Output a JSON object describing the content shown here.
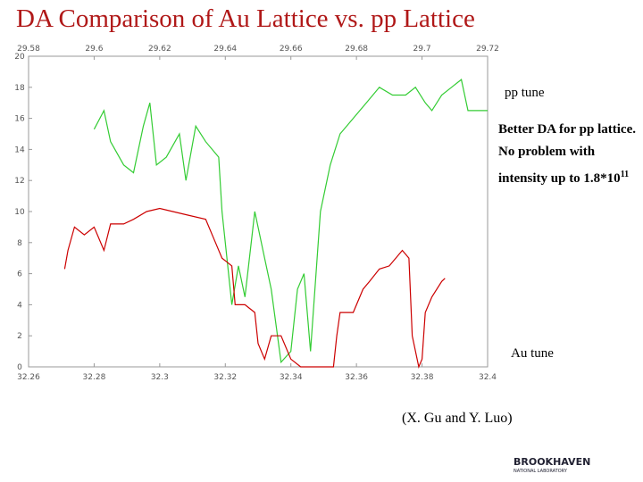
{
  "chart_data": {
    "type": "line",
    "title": "DA Comparison of Au Lattice vs. pp Lattice",
    "xlim": [
      32.26,
      32.4
    ],
    "xticks": [
      32.26,
      32.28,
      32.3,
      32.32,
      32.34,
      32.36,
      32.38,
      32.4
    ],
    "x2lim": [
      29.58,
      29.72
    ],
    "x2ticks": [
      29.58,
      29.6,
      29.62,
      29.64,
      29.66,
      29.68,
      29.7,
      29.72
    ],
    "ylim": [
      0,
      20
    ],
    "yticks": [
      0,
      2,
      4,
      6,
      8,
      10,
      12,
      14,
      16,
      18,
      20
    ],
    "series": [
      {
        "name": "pp tune",
        "color": "#33cc33",
        "x": [
          32.28,
          32.283,
          32.285,
          32.289,
          32.292,
          32.295,
          32.297,
          32.299,
          32.302,
          32.306,
          32.308,
          32.311,
          32.314,
          32.318,
          32.319,
          32.322,
          32.324,
          32.326,
          32.329,
          32.332,
          32.334,
          32.337,
          32.34,
          32.342,
          32.344,
          32.346,
          32.349,
          32.352,
          32.355,
          32.359,
          32.363,
          32.367,
          32.371,
          32.375,
          32.378,
          32.381,
          32.383,
          32.386,
          32.389,
          32.392,
          32.394,
          32.397,
          32.4
        ],
        "values": [
          15.3,
          16.5,
          14.5,
          13,
          12.5,
          15.5,
          17,
          13,
          13.5,
          15,
          12,
          15.5,
          14.5,
          13.5,
          10,
          4,
          6.5,
          4.5,
          10,
          7,
          5,
          0.3,
          1,
          5,
          6,
          1,
          10,
          13,
          15,
          16,
          17,
          18,
          17.5,
          17.5,
          18,
          17,
          16.5,
          17.5,
          18,
          18.5,
          16.5,
          16.5,
          16.5
        ]
      },
      {
        "name": "Au tune",
        "color": "#cc0000",
        "x": [
          32.271,
          32.272,
          32.274,
          32.277,
          32.28,
          32.283,
          32.285,
          32.289,
          32.292,
          32.296,
          32.3,
          32.304,
          32.308,
          32.314,
          32.317,
          32.319,
          32.322,
          32.323,
          32.326,
          32.329,
          32.33,
          32.332,
          32.334,
          32.337,
          32.34,
          32.343,
          32.347,
          32.353,
          32.354,
          32.355,
          32.359,
          32.362,
          32.364,
          32.367,
          32.37,
          32.374,
          32.376,
          32.377,
          32.379,
          32.38,
          32.381,
          32.383,
          32.386,
          32.387
        ],
        "values": [
          6.3,
          7.5,
          9,
          8.5,
          9,
          7.5,
          9.2,
          9.2,
          9.5,
          10,
          10.2,
          10,
          9.8,
          9.5,
          8,
          7,
          6.5,
          4,
          4,
          3.5,
          1.5,
          0.5,
          2,
          2,
          0.5,
          0,
          0,
          0,
          2,
          3.5,
          3.5,
          5,
          5.5,
          6.3,
          6.5,
          7.5,
          7,
          2,
          0,
          0.5,
          3.5,
          4.5,
          5.5,
          5.7
        ]
      }
    ],
    "note": "Better DA for pp lattice.  No problem with intensity up to 1.8*10",
    "note_exponent": "11"
  },
  "slide": {
    "credit": "(X. Gu and Y. Luo)",
    "logo": "BROOKHAVEN",
    "logo_sub": "NATIONAL LABORATORY"
  }
}
